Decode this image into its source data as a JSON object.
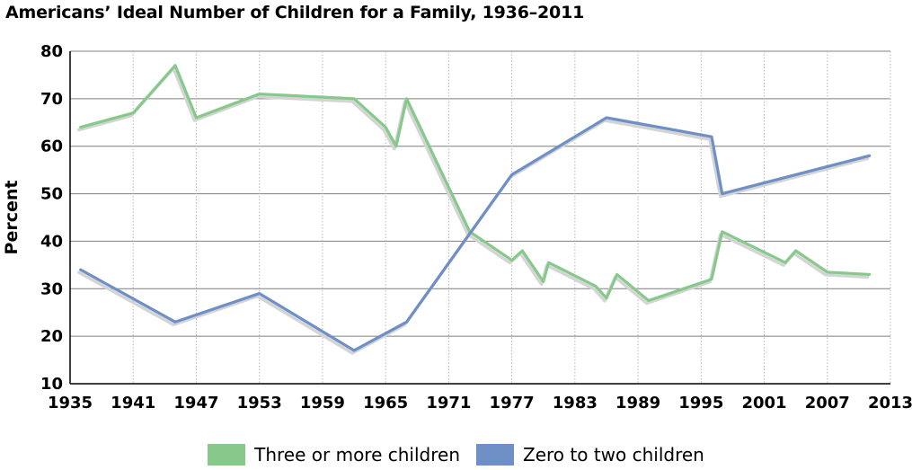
{
  "chart_data": {
    "type": "line",
    "title": "Americans’ Ideal Number of Children for a Family, 1936–2011",
    "xlabel": "",
    "ylabel": "Percent",
    "xlim": [
      1935,
      2013
    ],
    "ylim": [
      10,
      80
    ],
    "x_ticks": [
      1935,
      1941,
      1947,
      1953,
      1959,
      1965,
      1971,
      1977,
      1983,
      1989,
      1995,
      2001,
      2007,
      2013
    ],
    "y_ticks": [
      10,
      20,
      30,
      40,
      50,
      60,
      70,
      80
    ],
    "grid": "on",
    "legend_position": "bottom",
    "colors": {
      "three_or_more": "#86c98b",
      "zero_to_two": "#6f8fc7",
      "shadow": "#d4d4d4",
      "grid_major": "#7f7f7f",
      "grid_minor": "#b5b5b5"
    },
    "series": [
      {
        "name": "Three or more children",
        "color": "#86c98b",
        "points": [
          [
            1936,
            64
          ],
          [
            1941,
            67
          ],
          [
            1945,
            77
          ],
          [
            1947,
            66
          ],
          [
            1953,
            71
          ],
          [
            1962,
            70
          ],
          [
            1965,
            64
          ],
          [
            1966,
            60
          ],
          [
            1967,
            70
          ],
          [
            1973,
            42
          ],
          [
            1977,
            36
          ],
          [
            1978,
            38
          ],
          [
            1980,
            31.5
          ],
          [
            1980.5,
            35.5
          ],
          [
            1985,
            30.5
          ],
          [
            1986,
            28
          ],
          [
            1987,
            33
          ],
          [
            1990,
            27.5
          ],
          [
            1996,
            32
          ],
          [
            1997,
            42
          ],
          [
            2003,
            35.5
          ],
          [
            2004,
            38
          ],
          [
            2007,
            33.5
          ],
          [
            2011,
            33
          ]
        ]
      },
      {
        "name": "Zero to two children",
        "color": "#6f8fc7",
        "points": [
          [
            1936,
            34
          ],
          [
            1945,
            23
          ],
          [
            1953,
            29
          ],
          [
            1962,
            17
          ],
          [
            1967,
            23
          ],
          [
            1977,
            54
          ],
          [
            1986,
            66
          ],
          [
            1996,
            62
          ],
          [
            1997,
            50
          ],
          [
            2011,
            58
          ]
        ]
      }
    ]
  },
  "legend": {
    "items": [
      {
        "label": "Three or more children",
        "color": "#86c98b"
      },
      {
        "label": "Zero to two children",
        "color": "#6f8fc7"
      }
    ]
  }
}
